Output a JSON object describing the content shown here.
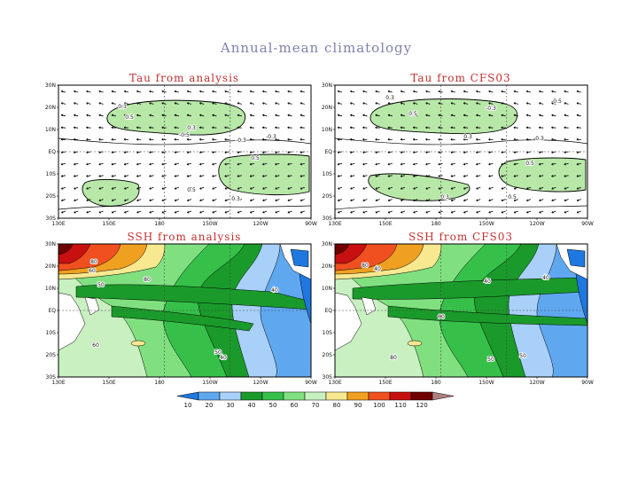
{
  "figure": {
    "title": "Annual-mean climatology"
  },
  "chart_data": [
    {
      "type": "contour",
      "title": "Tau from analysis",
      "field": "wind stress",
      "x_ticks": [
        "130E",
        "150E",
        "180",
        "150W",
        "120W",
        "90W"
      ],
      "y_ticks": [
        "30S",
        "20S",
        "10S",
        "EQ",
        "10N",
        "20N",
        "30N"
      ],
      "contour_labels": [
        "0.3",
        "0.5",
        "0.3",
        "-0.5",
        "0.5",
        "-0.3",
        "0.3",
        "0.5",
        "-0.3"
      ],
      "grid": true
    },
    {
      "type": "contour",
      "title": "Tau from CFS03",
      "field": "wind stress",
      "x_ticks": [
        "130E",
        "150E",
        "180",
        "150W",
        "120W",
        "90W"
      ],
      "y_ticks": [
        "30S",
        "20S",
        "10S",
        "EQ",
        "10N",
        "20N",
        "30N"
      ],
      "contour_labels": [
        "0.3",
        "0.5",
        "0.3",
        "-0.3",
        "0.5",
        "-0.3",
        "0.3",
        "0.5",
        "-0.5"
      ],
      "grid": true
    },
    {
      "type": "contour",
      "title": "SSH from analysis",
      "field": "sea surface height",
      "x_ticks": [
        "130E",
        "150E",
        "180",
        "150W",
        "120W",
        "90W"
      ],
      "y_ticks": [
        "30S",
        "20S",
        "10S",
        "EQ",
        "10N",
        "20N",
        "30N"
      ],
      "contour_labels": [
        "80",
        "60",
        "40",
        "60",
        "80",
        "50",
        "40",
        "50"
      ],
      "grid": true
    },
    {
      "type": "contour",
      "title": "SSH from CFS03",
      "field": "sea surface height",
      "x_ticks": [
        "130E",
        "150E",
        "180",
        "150W",
        "120W",
        "90W"
      ],
      "y_ticks": [
        "30S",
        "20S",
        "10S",
        "EQ",
        "10N",
        "20N",
        "30N"
      ],
      "contour_labels": [
        "80",
        "40",
        "40",
        "80",
        "60",
        "50",
        "50",
        "40"
      ],
      "grid": true
    }
  ],
  "colorbar": {
    "levels": [
      "10",
      "20",
      "30",
      "40",
      "50",
      "60",
      "70",
      "80",
      "90",
      "100",
      "110",
      "120"
    ],
    "colors": [
      "#1e78e0",
      "#5fa8f0",
      "#a8d0f8",
      "#1a9a2a",
      "#36c04a",
      "#80e080",
      "#c8f0c0",
      "#f8e890",
      "#f0a020",
      "#f05020",
      "#c81010",
      "#700000",
      "#b08080"
    ]
  },
  "ssh_palette": {
    "deepblue": "#1e78e0",
    "blue": "#5fa8f0",
    "lightblue": "#a8d0f8",
    "darkgreen": "#1a9a2a",
    "green": "#36c04a",
    "midgreen": "#80e080",
    "palegreen": "#c8f0c0",
    "yellow": "#f8e890",
    "orange": "#f0a020",
    "redorange": "#f05020",
    "red": "#c81010",
    "darkred": "#700000"
  },
  "tau_palette": {
    "shade": "#b8e8a8"
  }
}
